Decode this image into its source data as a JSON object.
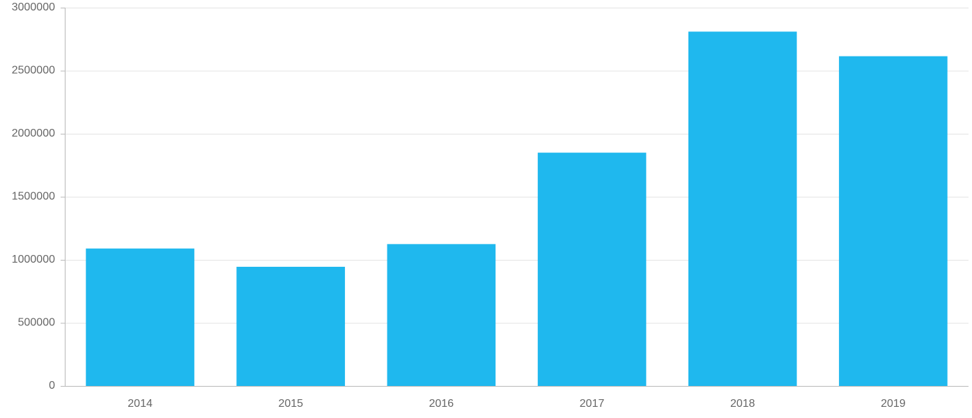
{
  "chart_data": {
    "type": "bar",
    "title": "",
    "xlabel": "",
    "ylabel": "",
    "categories": [
      "2014",
      "2015",
      "2016",
      "2017",
      "2018",
      "2019"
    ],
    "values": [
      1090000,
      945000,
      1125000,
      1850000,
      2810000,
      2615000
    ],
    "ylim": [
      0,
      3000000
    ],
    "yticks": [
      "0",
      "500000",
      "1000000",
      "1500000",
      "2000000",
      "2500000",
      "3000000"
    ],
    "grid": true,
    "legend": "none",
    "bar_color": "#1fb8ee"
  }
}
